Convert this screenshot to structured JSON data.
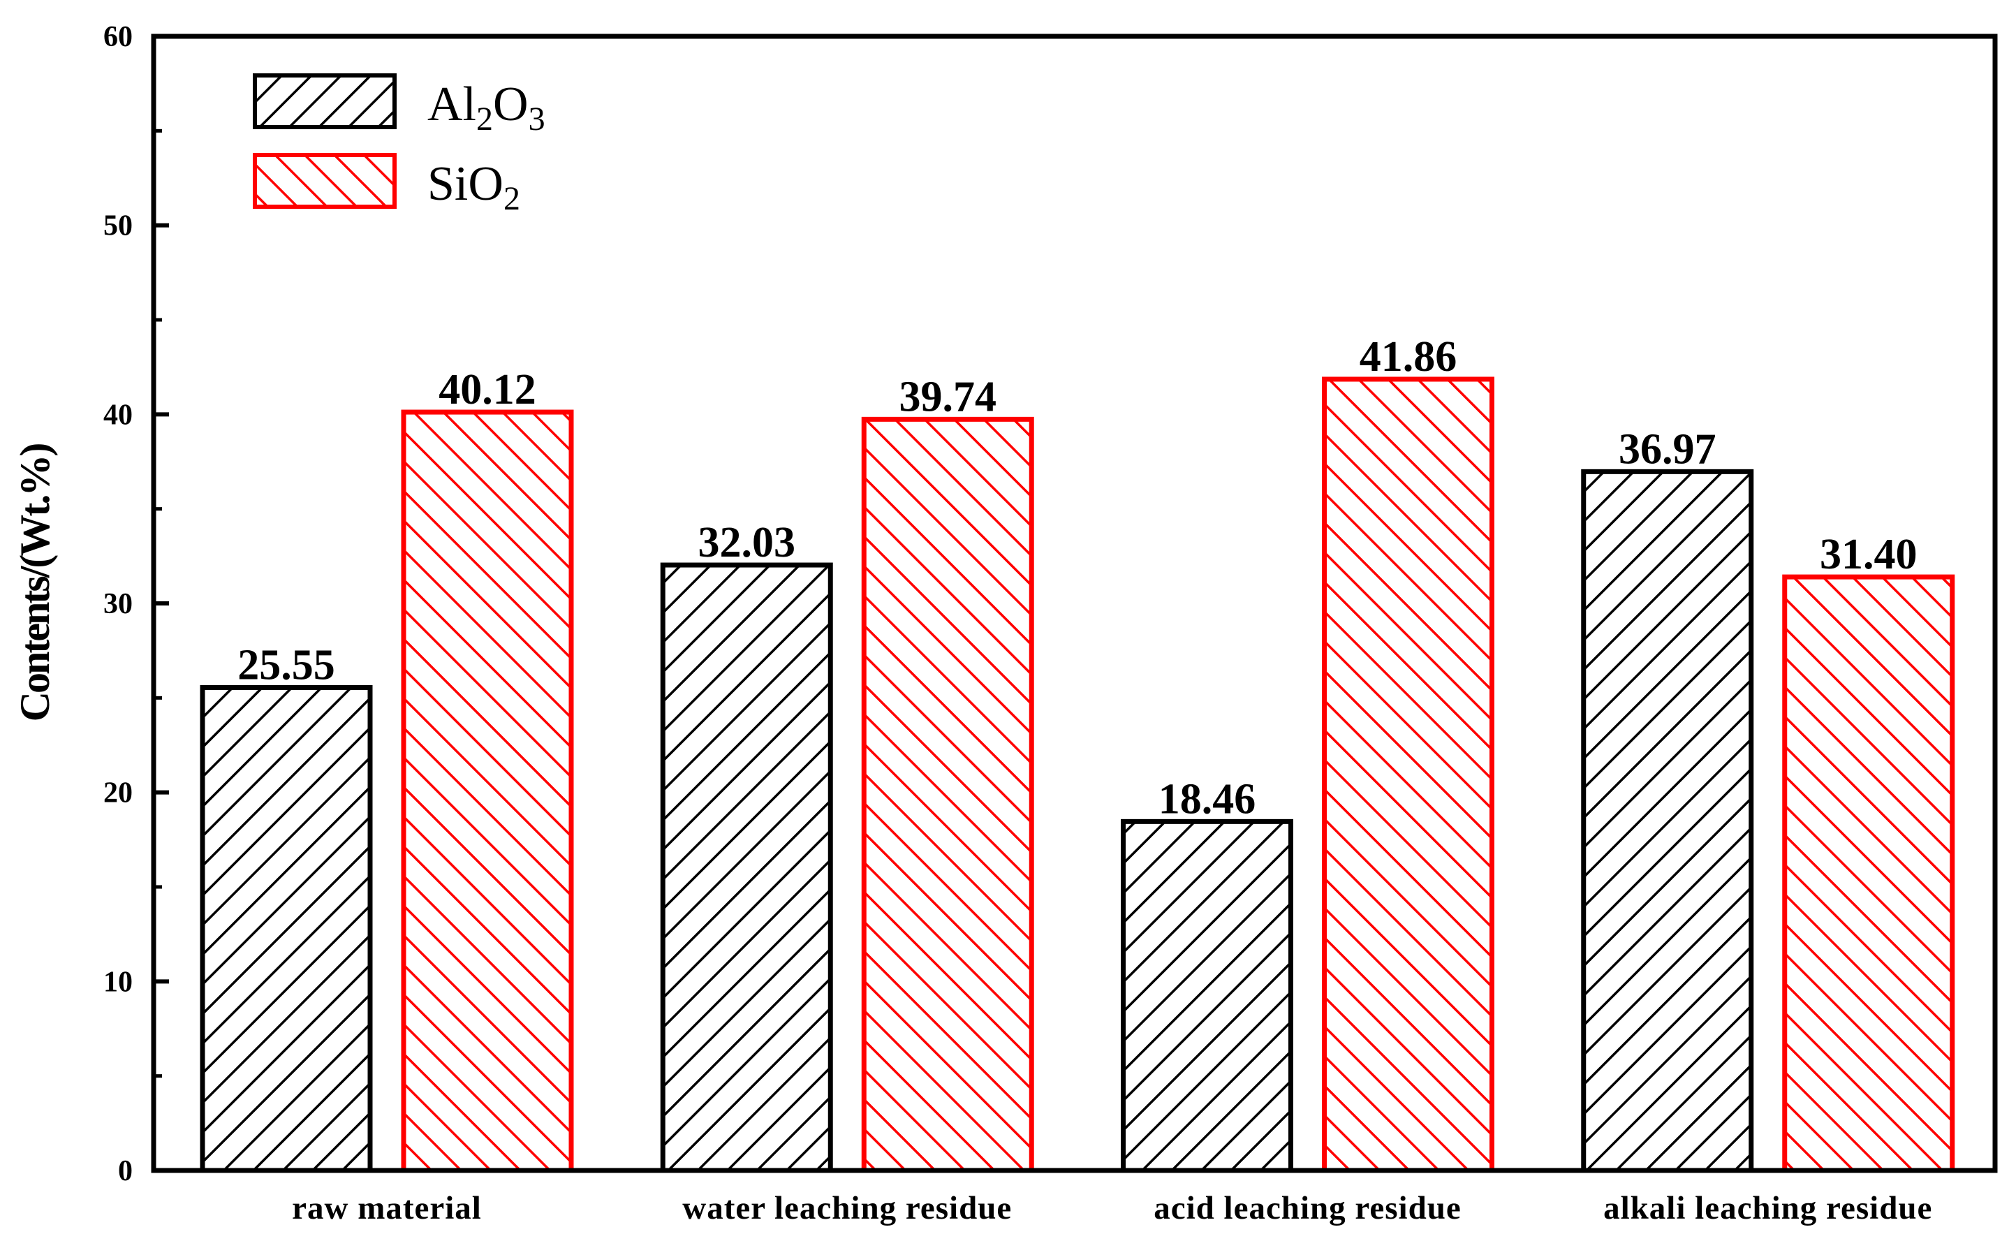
{
  "chart_data": {
    "type": "bar",
    "categories": [
      "raw material",
      "water leaching residue",
      "acid leaching residue",
      "alkali leaching residue"
    ],
    "series": [
      {
        "name": "Al2O3",
        "name_parts": [
          "Al",
          "2",
          "O",
          "3"
        ],
        "color": "#000000",
        "hatch": "forward-diagonal",
        "values": [
          25.55,
          32.03,
          18.46,
          36.97
        ],
        "labels": [
          "25.55",
          "32.03",
          "18.46",
          "36.97"
        ]
      },
      {
        "name": "SiO2",
        "name_parts": [
          "SiO",
          "2"
        ],
        "color": "#ff0000",
        "hatch": "backward-diagonal",
        "values": [
          40.12,
          39.74,
          41.86,
          31.4
        ],
        "labels": [
          "40.12",
          "39.74",
          "41.86",
          "31.40"
        ]
      }
    ],
    "ylabel": "Contents/(Wt.%)",
    "xlabel": "",
    "ylim": [
      0,
      60
    ],
    "yticks": [
      0,
      10,
      20,
      30,
      40,
      50,
      60
    ],
    "legend_position": "top-left",
    "grid": false
  }
}
